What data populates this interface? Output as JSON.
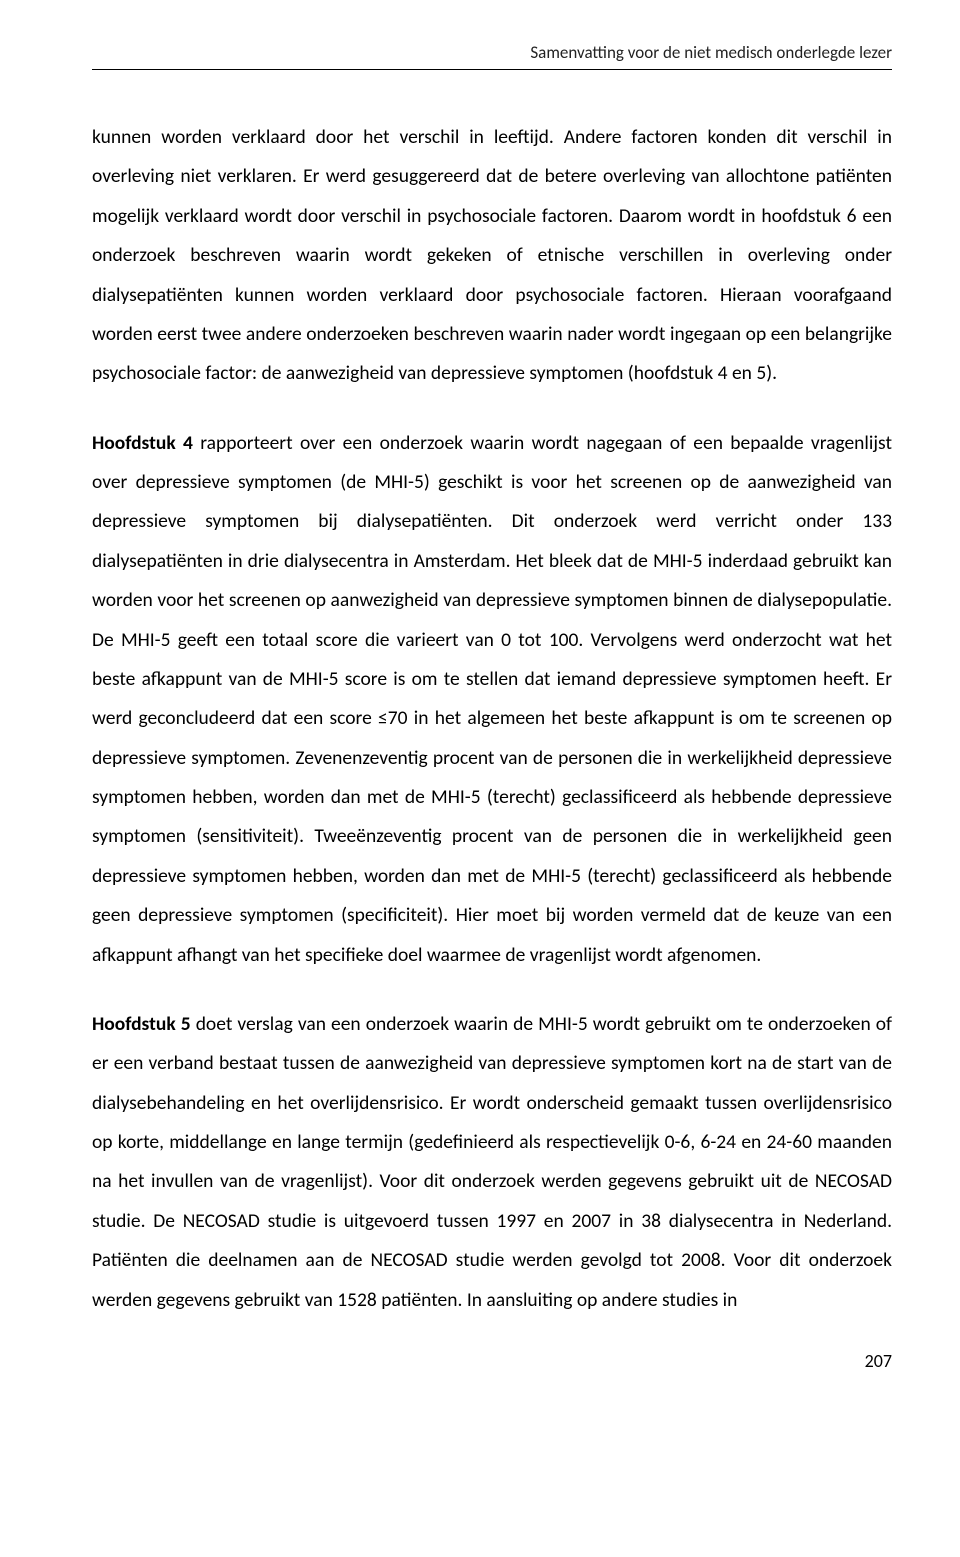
{
  "page": {
    "running_head": "Samenvatting voor de niet medisch onderlegde lezer",
    "page_number": "207"
  },
  "paragraphs": {
    "p1": "kunnen worden verklaard door het verschil in leeftijd. Andere factoren konden dit verschil in overleving niet verklaren. Er werd gesuggereerd dat de betere overleving van allochtone patiënten mogelijk verklaard wordt door verschil in psychosociale factoren. Daarom wordt in hoofdstuk 6 een onderzoek beschreven waarin wordt gekeken of etnische verschillen in overleving onder dialysepatiënten kunnen worden verklaard door psychosociale factoren. Hieraan voorafgaand worden eerst twee andere onderzoeken beschreven waarin nader wordt ingegaan op een belangrijke psychosociale factor: de aanwezigheid van depressieve symptomen (hoofdstuk 4 en 5).",
    "p2_lead": "Hoofdstuk 4",
    "p2_rest": " rapporteert over een onderzoek waarin wordt nagegaan of een bepaalde vragenlijst over depressieve symptomen (de MHI-5) geschikt is voor het screenen op de aanwezigheid van depressieve symptomen bij dialysepatiënten. Dit onderzoek werd verricht onder 133 dialysepatiënten in drie dialysecentra in Amsterdam. Het bleek dat de MHI-5 inderdaad gebruikt kan worden voor het screenen op aanwezigheid van depressieve symptomen binnen de dialysepopulatie. De MHI-5 geeft een totaal score die varieert van 0 tot 100. Vervolgens werd onderzocht wat het beste afkappunt van de MHI-5 score is om te stellen dat iemand depressieve symptomen heeft. Er werd geconcludeerd dat een score ≤70 in het algemeen het beste afkappunt is om te screenen op depressieve symptomen. Zevenenzeventig procent van de personen die in werkelijkheid depressieve symptomen hebben, worden dan met de MHI-5 (terecht) geclassificeerd als hebbende depressieve symptomen (sensitiviteit). Tweeënzeventig procent van de personen die in werkelijkheid geen depressieve symptomen hebben, worden dan met de MHI-5 (terecht) geclassificeerd als hebbende geen depressieve symptomen (specificiteit). Hier moet bij worden vermeld dat de keuze van een afkappunt afhangt van het specifieke doel waarmee de vragenlijst wordt afgenomen.",
    "p3_lead": "Hoofdstuk 5",
    "p3_rest": " doet verslag van een onderzoek waarin de MHI-5 wordt gebruikt om te onderzoeken of er een verband bestaat tussen de aanwezigheid van depressieve symptomen kort na de start van de dialysebehandeling en het overlijdensrisico. Er wordt onderscheid gemaakt tussen overlijdensrisico op korte, middellange en lange termijn (gedefinieerd als respectievelijk 0-6, 6-24 en 24-60 maanden na het invullen van de vragenlijst). Voor dit onderzoek werden gegevens gebruikt uit de NECOSAD studie. De NECOSAD studie is uitgevoerd tussen 1997 en 2007 in 38 dialysecentra in Nederland. Patiënten die deelnamen aan de NECOSAD studie werden gevolgd tot 2008. Voor dit onderzoek werden gegevens gebruikt van 1528 patiënten. In aansluiting op andere studies in"
  }
}
